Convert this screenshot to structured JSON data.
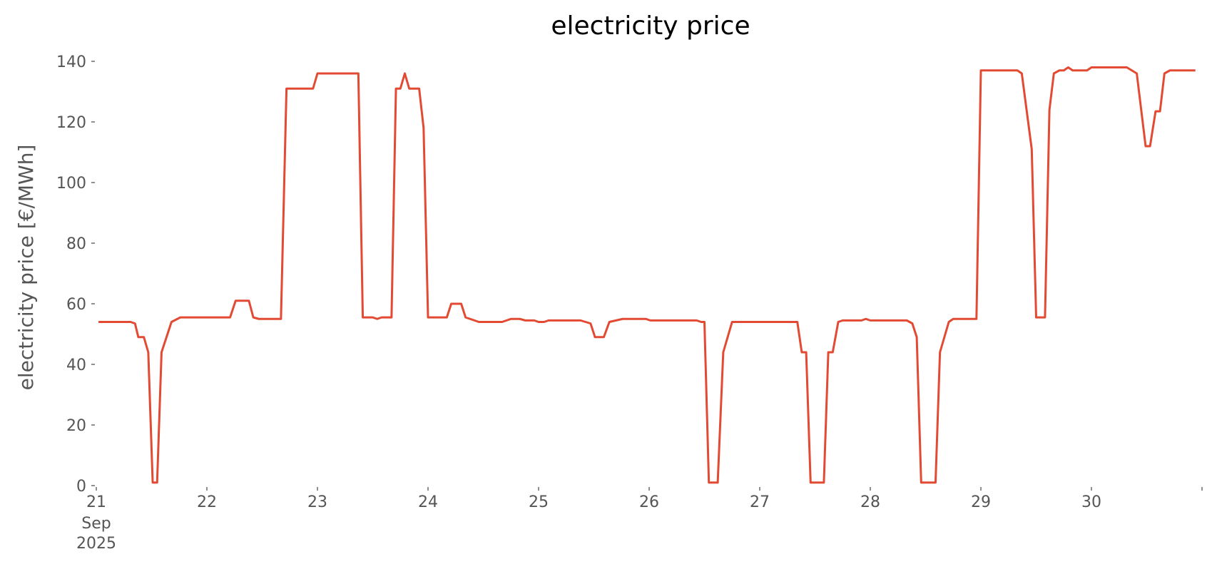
{
  "chart_data": {
    "type": "line",
    "title": "electricity price",
    "ylabel": "electricity price [€/MWh]",
    "x": [
      21.02,
      21.31,
      21.35,
      21.38,
      21.43,
      21.47,
      21.51,
      21.55,
      21.59,
      21.68,
      21.76,
      22.21,
      22.26,
      22.38,
      22.42,
      22.47,
      22.67,
      22.72,
      22.96,
      23.0,
      23.37,
      23.41,
      23.5,
      23.54,
      23.58,
      23.67,
      23.71,
      23.75,
      23.79,
      23.83,
      23.92,
      23.96,
      24.0,
      24.17,
      24.21,
      24.3,
      24.34,
      24.46,
      24.67,
      24.75,
      24.83,
      24.88,
      24.96,
      25.0,
      25.05,
      25.09,
      25.38,
      25.47,
      25.51,
      25.59,
      25.64,
      25.76,
      25.97,
      26.01,
      26.43,
      26.47,
      26.5,
      26.54,
      26.62,
      26.67,
      26.75,
      27.34,
      27.38,
      27.42,
      27.46,
      27.58,
      27.62,
      27.66,
      27.71,
      27.75,
      27.92,
      27.96,
      28.0,
      28.33,
      28.38,
      28.42,
      28.46,
      28.59,
      28.63,
      28.71,
      28.75,
      28.96,
      29.0,
      29.33,
      29.37,
      29.46,
      29.5,
      29.58,
      29.62,
      29.66,
      29.71,
      29.75,
      29.79,
      29.83,
      29.96,
      30.0,
      30.32,
      30.41,
      30.49,
      30.53,
      30.58,
      30.62,
      30.66,
      30.71,
      30.94
    ],
    "series": [
      {
        "name": "electricity price",
        "color": "#e24a33",
        "values": [
          54,
          54,
          53.5,
          49,
          49,
          44,
          1,
          1,
          44,
          54,
          55.5,
          55.5,
          61,
          61,
          55.5,
          55,
          55,
          131,
          131,
          136,
          136,
          55.5,
          55.5,
          55,
          55.5,
          55.5,
          131,
          131,
          136,
          131,
          131,
          118,
          55.5,
          55.5,
          60,
          60,
          55.5,
          54,
          54,
          55,
          55,
          54.5,
          54.5,
          54,
          54,
          54.5,
          54.5,
          53.5,
          49,
          49,
          54,
          55,
          55,
          54.5,
          54.5,
          54,
          54,
          1,
          1,
          44,
          54,
          54,
          44,
          44,
          1,
          1,
          44,
          44,
          54,
          54.5,
          54.5,
          55,
          54.5,
          54.5,
          53.5,
          49,
          1,
          1,
          44,
          54,
          55,
          55,
          137,
          137,
          136,
          111,
          55.5,
          55.5,
          124,
          136,
          137,
          137,
          138,
          137,
          137,
          138,
          138,
          136,
          112,
          112,
          123.5,
          123.5,
          136,
          137,
          137
        ]
      }
    ],
    "xlim": [
      21,
      31
    ],
    "xticks": [
      21,
      22,
      23,
      24,
      25,
      26,
      27,
      28,
      29,
      30,
      {
        "value": 31,
        "label": ""
      }
    ],
    "xtick_sublabels": [
      "Sep",
      "2025"
    ],
    "ylim": [
      0,
      140
    ],
    "yticks": [
      0,
      20,
      40,
      60,
      80,
      100,
      120,
      140
    ],
    "grid": false
  }
}
